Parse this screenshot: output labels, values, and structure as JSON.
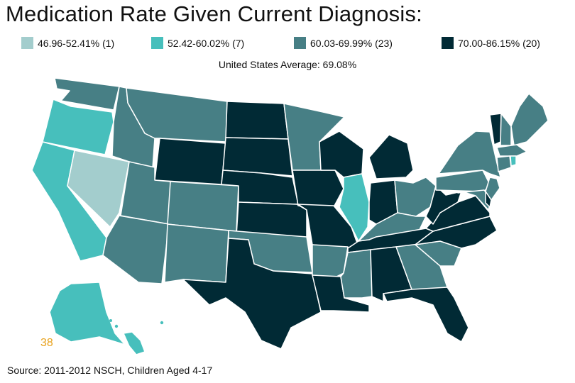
{
  "title": "Medication Rate Given Current Diagnosis:",
  "legend": [
    {
      "label": "46.96-52.41% (1)",
      "color": "#a3cdcd"
    },
    {
      "label": "52.42-60.02% (7)",
      "color": "#47bfbc"
    },
    {
      "label": "60.03-69.99% (23)",
      "color": "#477f85"
    },
    {
      "label": "70.00-86.15% (20)",
      "color": "#012a35"
    }
  ],
  "average_label": "United States Average: 69.08%",
  "figure_number": "38",
  "source": "Source: 2011-2012 NSCH, Children Aged 4-17",
  "states": {
    "NV": 0,
    "OR": 1,
    "CA": 1,
    "IL": 1,
    "AK": 1,
    "HI": 1,
    "RI": 1,
    "WA": 2,
    "ID": 2,
    "MT": 2,
    "UT": 2,
    "AZ": 2,
    "CO": 2,
    "NM": 2,
    "OK": 2,
    "MN": 2,
    "AR": 2,
    "MS": 2,
    "GA": 2,
    "SC": 2,
    "OH": 2,
    "KY": 2,
    "PA": 2,
    "NY": 2,
    "ME": 2,
    "NH": 2,
    "MA": 2,
    "CT": 2,
    "NJ": 2,
    "MD": 2,
    "WY": 3,
    "ND": 3,
    "SD": 3,
    "NE": 3,
    "KS": 3,
    "TX": 3,
    "IA": 3,
    "MO": 3,
    "WI": 3,
    "MI": 3,
    "IN": 3,
    "TN": 3,
    "AL": 3,
    "LA": 3,
    "FL": 3,
    "WV": 3,
    "VA": 3,
    "NC": 3,
    "VT": 3,
    "DE": 3
  }
}
